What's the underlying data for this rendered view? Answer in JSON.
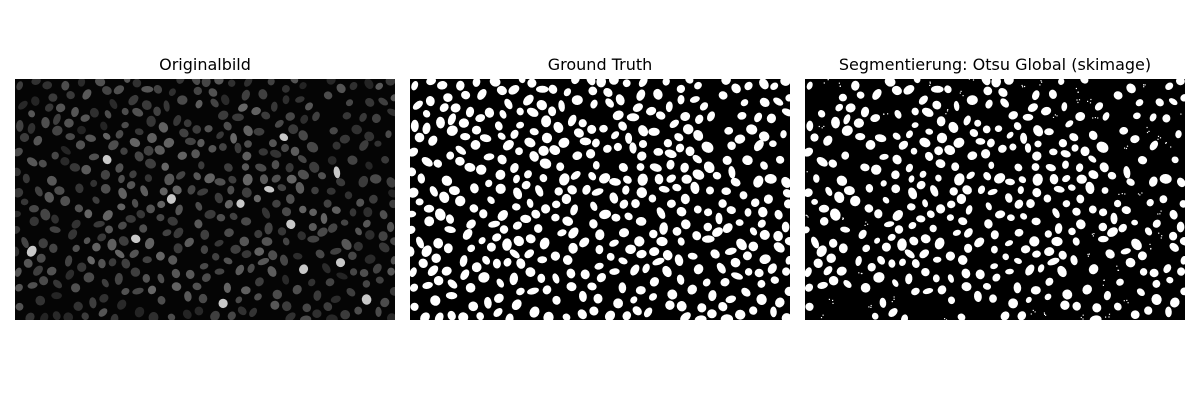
{
  "figure": {
    "panels": [
      {
        "title": "Originalbild"
      },
      {
        "title": "Ground Truth"
      },
      {
        "title": "Segmentierung: Otsu Global (skimage)"
      }
    ]
  },
  "colors": {
    "background": "#ffffff",
    "image_background": "#000000",
    "foreground": "#ffffff"
  }
}
